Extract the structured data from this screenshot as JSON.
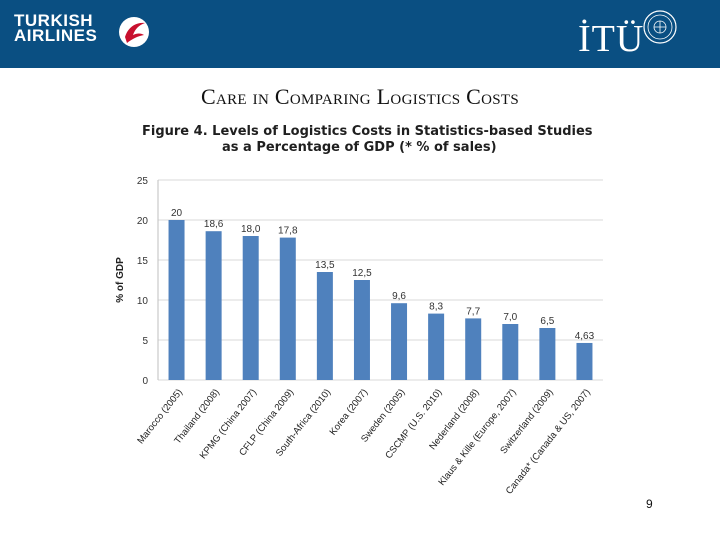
{
  "header": {
    "left_logo": {
      "line1": "TURKISH",
      "line2": "AIRLINES"
    },
    "right_logo": {
      "text": "İTÜ"
    }
  },
  "slide": {
    "title": "Care in Comparing Logistics Costs",
    "page_number": "9"
  },
  "colors": {
    "header_bg": "#0a4f82",
    "bar": "#4f81bd",
    "figure_title": "#1f1f1f",
    "gridline": "#d9d9d9"
  },
  "chart_data": {
    "type": "bar",
    "title_line1": "Figure 4.  Levels of Logistics Costs in Statistics-based Studies",
    "title_line2": "as a Percentage of GDP (* % of sales)",
    "ylabel": "% of GDP",
    "xlabel": "",
    "ylim": [
      0,
      25
    ],
    "yticks": [
      "0",
      "5",
      "10",
      "15",
      "20",
      "25"
    ],
    "ytick_values": [
      0,
      5,
      10,
      15,
      20,
      25
    ],
    "grid": true,
    "categories": [
      "Marocco (2005)",
      "Thailand (2008)",
      "KPMG (China 2007)",
      "CFLP (China 2009)",
      "South-Africa (2010)",
      "Korea (2007)",
      "Sweden (2005)",
      "CSCMP (U.S. 2010)",
      "Nederland (2008)",
      "Klaus & Kille (Europe, 2007)",
      "Switzerland (2009)",
      "Canada* (Canada & US, 2007)"
    ],
    "values": [
      20,
      18.6,
      18.0,
      17.8,
      13.5,
      12.5,
      9.6,
      8.3,
      7.7,
      7.0,
      6.5,
      4.63
    ],
    "value_labels": [
      "20",
      "18,6",
      "18,0",
      "17,8",
      "13,5",
      "12,5",
      "9,6",
      "8,3",
      "7,7",
      "7,0",
      "6,5",
      "4,63"
    ]
  }
}
